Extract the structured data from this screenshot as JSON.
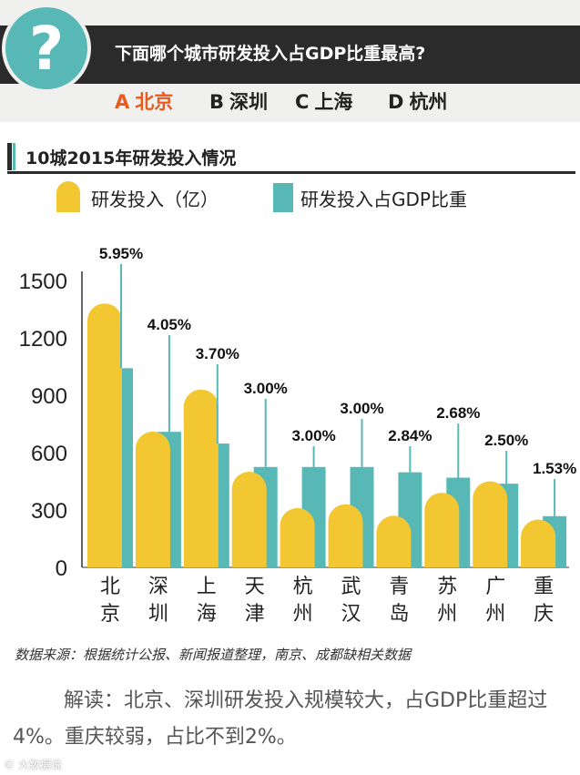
{
  "question": {
    "mark": "?",
    "text": "下面哪个城市研发投入占GDP比重最高?",
    "options": [
      {
        "letter": "A",
        "city": "北京",
        "color": "#e85a1e"
      },
      {
        "letter": "B",
        "city": "深圳",
        "color": "#222222"
      },
      {
        "letter": "C",
        "city": "上海",
        "color": "#222222"
      },
      {
        "letter": "D",
        "city": "杭州",
        "color": "#222222"
      }
    ]
  },
  "colors": {
    "bar_primary": "#f2c731",
    "bar_secondary": "#58b8b5",
    "header_bg": "#2b2b2b",
    "circle": "#58b8b5"
  },
  "legend": {
    "item1": "研发投入（亿）",
    "item2": "研发投入占GDP比重"
  },
  "chart_data": {
    "type": "bar",
    "title": "10城2015年研发投入情况",
    "categories": [
      "北京",
      "深圳",
      "上海",
      "天津",
      "杭州",
      "武汉",
      "青岛",
      "苏州",
      "广州",
      "重庆"
    ],
    "series": [
      {
        "name": "研发投入（亿）",
        "values": [
          1380,
          710,
          930,
          500,
          310,
          330,
          270,
          390,
          450,
          250
        ]
      },
      {
        "name": "研发投入占GDP比重",
        "values": [
          5.95,
          4.05,
          3.7,
          3.0,
          3.0,
          3.0,
          2.84,
          2.68,
          2.5,
          1.53
        ]
      }
    ],
    "percent_labels": [
      "5.95%",
      "4.05%",
      "3.70%",
      "3.00%",
      "3.00%",
      "3.00%",
      "2.84%",
      "2.68%",
      "2.50%",
      "1.53%"
    ],
    "y_ticks": [
      0,
      300,
      600,
      900,
      1200,
      1500
    ],
    "ylim": [
      0,
      1500
    ],
    "xlabel": "",
    "ylabel": ""
  },
  "source": "数据来源：根据统计公报、新闻报道整理，南京、成都缺相关数据",
  "interpretation": "解读：北京、深圳研发投入规模较大，占GDP比重超过4%。重庆较弱，占比不到2%。",
  "watermark": "© 大数据说"
}
